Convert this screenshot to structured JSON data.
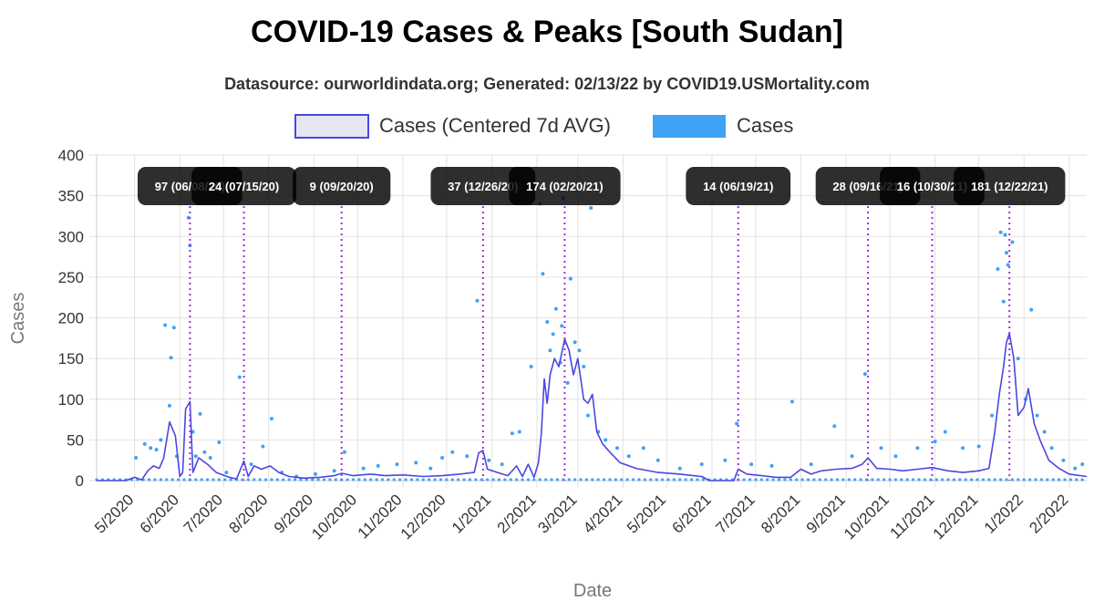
{
  "chart_data": {
    "type": "line",
    "title": "COVID-19 Cases & Peaks [South Sudan]",
    "subtitle": "Datasource: ourworldindata.org; Generated: 02/13/22 by COVID19.USMortality.com",
    "xlabel": "Date",
    "ylabel": "Cases",
    "ylim": [
      0,
      400
    ],
    "yticks": [
      0,
      50,
      100,
      150,
      200,
      250,
      300,
      350,
      400
    ],
    "xlim": [
      "2020-04-05",
      "2022-02-13"
    ],
    "x_ticks": [
      {
        "label": "5/2020",
        "date": "2020-05-01"
      },
      {
        "label": "6/2020",
        "date": "2020-06-01"
      },
      {
        "label": "7/2020",
        "date": "2020-07-01"
      },
      {
        "label": "8/2020",
        "date": "2020-08-01"
      },
      {
        "label": "9/2020",
        "date": "2020-09-01"
      },
      {
        "label": "10/2020",
        "date": "2020-10-01"
      },
      {
        "label": "11/2020",
        "date": "2020-11-01"
      },
      {
        "label": "12/2020",
        "date": "2020-12-01"
      },
      {
        "label": "1/2021",
        "date": "2021-01-01"
      },
      {
        "label": "2/2021",
        "date": "2021-02-01"
      },
      {
        "label": "3/2021",
        "date": "2021-03-01"
      },
      {
        "label": "4/2021",
        "date": "2021-04-01"
      },
      {
        "label": "5/2021",
        "date": "2021-05-01"
      },
      {
        "label": "6/2021",
        "date": "2021-06-01"
      },
      {
        "label": "7/2021",
        "date": "2021-07-01"
      },
      {
        "label": "8/2021",
        "date": "2021-08-01"
      },
      {
        "label": "9/2021",
        "date": "2021-09-01"
      },
      {
        "label": "10/2021",
        "date": "2021-10-01"
      },
      {
        "label": "11/2021",
        "date": "2021-11-01"
      },
      {
        "label": "12/2021",
        "date": "2021-12-01"
      },
      {
        "label": "1/2022",
        "date": "2022-01-01"
      },
      {
        "label": "2/2022",
        "date": "2022-02-01"
      }
    ],
    "legend": {
      "placement": "top"
    },
    "grid": true,
    "series": [
      {
        "name": "Cases (Centered 7d AVG)",
        "type": "line",
        "color": "#4a47e0",
        "fill": "#e6e6f0",
        "points": [
          [
            "2020-04-05",
            0
          ],
          [
            "2020-04-25",
            0
          ],
          [
            "2020-05-01",
            4
          ],
          [
            "2020-05-06",
            1
          ],
          [
            "2020-05-10",
            12
          ],
          [
            "2020-05-14",
            18
          ],
          [
            "2020-05-18",
            15
          ],
          [
            "2020-05-21",
            28
          ],
          [
            "2020-05-25",
            72
          ],
          [
            "2020-05-29",
            55
          ],
          [
            "2020-06-01",
            5
          ],
          [
            "2020-06-03",
            10
          ],
          [
            "2020-06-05",
            88
          ],
          [
            "2020-06-08",
            97
          ],
          [
            "2020-06-10",
            10
          ],
          [
            "2020-06-14",
            28
          ],
          [
            "2020-06-20",
            20
          ],
          [
            "2020-06-26",
            10
          ],
          [
            "2020-07-05",
            4
          ],
          [
            "2020-07-10",
            2
          ],
          [
            "2020-07-15",
            24
          ],
          [
            "2020-07-18",
            5
          ],
          [
            "2020-07-22",
            18
          ],
          [
            "2020-07-27",
            14
          ],
          [
            "2020-08-02",
            18
          ],
          [
            "2020-08-08",
            10
          ],
          [
            "2020-08-15",
            5
          ],
          [
            "2020-08-25",
            3
          ],
          [
            "2020-09-05",
            4
          ],
          [
            "2020-09-15",
            6
          ],
          [
            "2020-09-20",
            9
          ],
          [
            "2020-09-28",
            6
          ],
          [
            "2020-10-10",
            8
          ],
          [
            "2020-10-20",
            6
          ],
          [
            "2020-11-01",
            7
          ],
          [
            "2020-11-15",
            5
          ],
          [
            "2020-11-28",
            6
          ],
          [
            "2020-12-10",
            8
          ],
          [
            "2020-12-20",
            10
          ],
          [
            "2020-12-23",
            34
          ],
          [
            "2020-12-26",
            37
          ],
          [
            "2020-12-29",
            14
          ],
          [
            "2021-01-05",
            10
          ],
          [
            "2021-01-12",
            6
          ],
          [
            "2021-01-18",
            18
          ],
          [
            "2021-01-22",
            5
          ],
          [
            "2021-01-26",
            20
          ],
          [
            "2021-01-30",
            4
          ],
          [
            "2021-02-02",
            22
          ],
          [
            "2021-02-04",
            58
          ],
          [
            "2021-02-06",
            125
          ],
          [
            "2021-02-08",
            95
          ],
          [
            "2021-02-10",
            130
          ],
          [
            "2021-02-13",
            150
          ],
          [
            "2021-02-16",
            140
          ],
          [
            "2021-02-20",
            174
          ],
          [
            "2021-02-23",
            160
          ],
          [
            "2021-02-26",
            130
          ],
          [
            "2021-03-01",
            150
          ],
          [
            "2021-03-05",
            100
          ],
          [
            "2021-03-08",
            95
          ],
          [
            "2021-03-11",
            106
          ],
          [
            "2021-03-14",
            60
          ],
          [
            "2021-03-18",
            45
          ],
          [
            "2021-03-23",
            35
          ],
          [
            "2021-03-30",
            22
          ],
          [
            "2021-04-10",
            15
          ],
          [
            "2021-04-25",
            10
          ],
          [
            "2021-05-10",
            8
          ],
          [
            "2021-05-25",
            5
          ],
          [
            "2021-05-30",
            0
          ],
          [
            "2021-06-16",
            0
          ],
          [
            "2021-06-19",
            14
          ],
          [
            "2021-06-25",
            8
          ],
          [
            "2021-07-05",
            6
          ],
          [
            "2021-07-15",
            4
          ],
          [
            "2021-07-25",
            4
          ],
          [
            "2021-08-01",
            14
          ],
          [
            "2021-08-08",
            8
          ],
          [
            "2021-08-15",
            12
          ],
          [
            "2021-08-25",
            14
          ],
          [
            "2021-09-05",
            15
          ],
          [
            "2021-09-12",
            20
          ],
          [
            "2021-09-16",
            28
          ],
          [
            "2021-09-22",
            15
          ],
          [
            "2021-10-01",
            14
          ],
          [
            "2021-10-10",
            12
          ],
          [
            "2021-10-20",
            14
          ],
          [
            "2021-10-30",
            16
          ],
          [
            "2021-11-10",
            12
          ],
          [
            "2021-11-20",
            10
          ],
          [
            "2021-12-01",
            12
          ],
          [
            "2021-12-08",
            15
          ],
          [
            "2021-12-12",
            60
          ],
          [
            "2021-12-15",
            105
          ],
          [
            "2021-12-18",
            140
          ],
          [
            "2021-12-20",
            170
          ],
          [
            "2021-12-22",
            181
          ],
          [
            "2021-12-25",
            150
          ],
          [
            "2021-12-28",
            80
          ],
          [
            "2022-01-01",
            90
          ],
          [
            "2022-01-04",
            113
          ],
          [
            "2022-01-08",
            70
          ],
          [
            "2022-01-12",
            50
          ],
          [
            "2022-01-18",
            25
          ],
          [
            "2022-01-25",
            15
          ],
          [
            "2022-02-01",
            8
          ],
          [
            "2022-02-13",
            5
          ]
        ]
      },
      {
        "name": "Cases",
        "type": "scatter",
        "color": "#3fa2f7",
        "points": [
          [
            "2020-05-02",
            28
          ],
          [
            "2020-05-08",
            45
          ],
          [
            "2020-05-12",
            40
          ],
          [
            "2020-05-16",
            38
          ],
          [
            "2020-05-19",
            50
          ],
          [
            "2020-05-22",
            191
          ],
          [
            "2020-05-25",
            92
          ],
          [
            "2020-05-26",
            151
          ],
          [
            "2020-05-28",
            188
          ],
          [
            "2020-05-30",
            30
          ],
          [
            "2020-06-07",
            323
          ],
          [
            "2020-06-08",
            289
          ],
          [
            "2020-06-10",
            60
          ],
          [
            "2020-06-12",
            30
          ],
          [
            "2020-06-15",
            82
          ],
          [
            "2020-06-18",
            35
          ],
          [
            "2020-06-22",
            28
          ],
          [
            "2020-06-28",
            47
          ],
          [
            "2020-07-03",
            10
          ],
          [
            "2020-07-12",
            127
          ],
          [
            "2020-07-20",
            20
          ],
          [
            "2020-07-28",
            42
          ],
          [
            "2020-08-03",
            76
          ],
          [
            "2020-08-10",
            10
          ],
          [
            "2020-08-20",
            5
          ],
          [
            "2020-09-02",
            8
          ],
          [
            "2020-09-15",
            12
          ],
          [
            "2020-09-22",
            35
          ],
          [
            "2020-10-05",
            15
          ],
          [
            "2020-10-15",
            18
          ],
          [
            "2020-10-28",
            20
          ],
          [
            "2020-11-10",
            22
          ],
          [
            "2020-11-20",
            15
          ],
          [
            "2020-11-28",
            28
          ],
          [
            "2020-12-05",
            35
          ],
          [
            "2020-12-15",
            30
          ],
          [
            "2020-12-22",
            221
          ],
          [
            "2020-12-30",
            25
          ],
          [
            "2021-01-08",
            20
          ],
          [
            "2021-01-15",
            58
          ],
          [
            "2021-01-20",
            60
          ],
          [
            "2021-01-28",
            140
          ],
          [
            "2021-02-03",
            340
          ],
          [
            "2021-02-05",
            254
          ],
          [
            "2021-02-08",
            195
          ],
          [
            "2021-02-10",
            160
          ],
          [
            "2021-02-12",
            180
          ],
          [
            "2021-02-14",
            211
          ],
          [
            "2021-02-17",
            145
          ],
          [
            "2021-02-18",
            190
          ],
          [
            "2021-02-19",
            347
          ],
          [
            "2021-02-22",
            120
          ],
          [
            "2021-02-24",
            248
          ],
          [
            "2021-02-27",
            170
          ],
          [
            "2021-03-02",
            160
          ],
          [
            "2021-03-05",
            140
          ],
          [
            "2021-03-08",
            80
          ],
          [
            "2021-03-10",
            335
          ],
          [
            "2021-03-15",
            60
          ],
          [
            "2021-03-20",
            50
          ],
          [
            "2021-03-28",
            40
          ],
          [
            "2021-04-05",
            30
          ],
          [
            "2021-04-15",
            40
          ],
          [
            "2021-04-25",
            25
          ],
          [
            "2021-05-10",
            15
          ],
          [
            "2021-05-25",
            20
          ],
          [
            "2021-06-10",
            25
          ],
          [
            "2021-06-18",
            70
          ],
          [
            "2021-06-28",
            20
          ],
          [
            "2021-07-12",
            18
          ],
          [
            "2021-07-26",
            97
          ],
          [
            "2021-08-08",
            20
          ],
          [
            "2021-08-24",
            67
          ],
          [
            "2021-09-05",
            30
          ],
          [
            "2021-09-14",
            131
          ],
          [
            "2021-09-25",
            40
          ],
          [
            "2021-10-05",
            30
          ],
          [
            "2021-10-20",
            40
          ],
          [
            "2021-11-01",
            48
          ],
          [
            "2021-11-08",
            60
          ],
          [
            "2021-11-20",
            40
          ],
          [
            "2021-12-01",
            42
          ],
          [
            "2021-12-10",
            80
          ],
          [
            "2021-12-14",
            260
          ],
          [
            "2021-12-16",
            305
          ],
          [
            "2021-12-18",
            220
          ],
          [
            "2021-12-19",
            302
          ],
          [
            "2021-12-20",
            280
          ],
          [
            "2021-12-21",
            265
          ],
          [
            "2021-12-24",
            293
          ],
          [
            "2021-12-28",
            150
          ],
          [
            "2022-01-02",
            100
          ],
          [
            "2022-01-06",
            210
          ],
          [
            "2022-01-10",
            80
          ],
          [
            "2022-01-15",
            60
          ],
          [
            "2022-01-20",
            40
          ],
          [
            "2022-01-28",
            25
          ],
          [
            "2022-02-05",
            15
          ],
          [
            "2022-02-10",
            20
          ]
        ]
      }
    ],
    "peaks": [
      {
        "label": "97 (06/08/20)",
        "date": "2020-06-08"
      },
      {
        "label": "24 (07/15/20)",
        "date": "2020-07-15"
      },
      {
        "label": "9 (09/20/20)",
        "date": "2020-09-20"
      },
      {
        "label": "37 (12/26/20)",
        "date": "2020-12-26"
      },
      {
        "label": "174 (02/20/21)",
        "date": "2021-02-20"
      },
      {
        "label": "14 (06/19/21)",
        "date": "2021-06-19"
      },
      {
        "label": "28 (09/16/21)",
        "date": "2021-09-16"
      },
      {
        "label": "16 (10/30/21)",
        "date": "2021-10-30"
      },
      {
        "label": "181 (12/22/21)",
        "date": "2021-12-22"
      }
    ],
    "peak_line_color": "#9b30e0"
  }
}
